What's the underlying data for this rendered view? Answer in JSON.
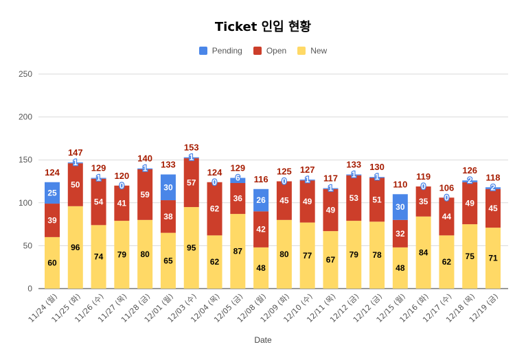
{
  "chart_data": {
    "type": "bar",
    "stacked": true,
    "title": "Ticket 인입 현황",
    "xlabel": "Date",
    "ylabel": "",
    "ylim": [
      0,
      250
    ],
    "yticks": [
      0,
      50,
      100,
      150,
      200,
      250
    ],
    "legend_position": "top-center",
    "categories": [
      "11/24 (월)",
      "11/25 (화)",
      "11/26 (수)",
      "11/27 (목)",
      "11/28 (금)",
      "12/01 (월)",
      "12/03 (수)",
      "12/04 (목)",
      "12/05 (금)",
      "12/08 (월)",
      "12/09 (화)",
      "12/10 (수)",
      "12/11 (목)",
      "12/12 (금)",
      "12/12 (금)",
      "12/15 (월)",
      "12/16 (화)",
      "12/17 (수)",
      "12/18 (목)",
      "12/19 (금)"
    ],
    "series": [
      {
        "name": "New",
        "color": "#FFD966",
        "label_color": "#000000",
        "values": [
          60,
          96,
          74,
          79,
          80,
          65,
          95,
          62,
          87,
          48,
          80,
          77,
          67,
          79,
          78,
          48,
          84,
          62,
          75,
          71
        ]
      },
      {
        "name": "Open",
        "color": "#CC3E2A",
        "label_color": "#ffffff",
        "values": [
          39,
          50,
          54,
          41,
          59,
          38,
          57,
          62,
          36,
          42,
          45,
          49,
          49,
          53,
          51,
          32,
          35,
          44,
          49,
          45
        ]
      },
      {
        "name": "Pending",
        "color": "#4A86E8",
        "label_color": "#ffffff",
        "values": [
          25,
          1,
          1,
          0,
          1,
          30,
          1,
          0,
          6,
          26,
          0,
          1,
          1,
          1,
          1,
          30,
          0,
          0,
          2,
          2
        ]
      }
    ],
    "totals": [
      124,
      147,
      129,
      120,
      140,
      133,
      153,
      124,
      129,
      116,
      125,
      127,
      117,
      133,
      130,
      110,
      119,
      106,
      126,
      118
    ],
    "legend_order": [
      "Pending",
      "Open",
      "New"
    ],
    "totals_color": "#A61C00",
    "grid": true
  }
}
